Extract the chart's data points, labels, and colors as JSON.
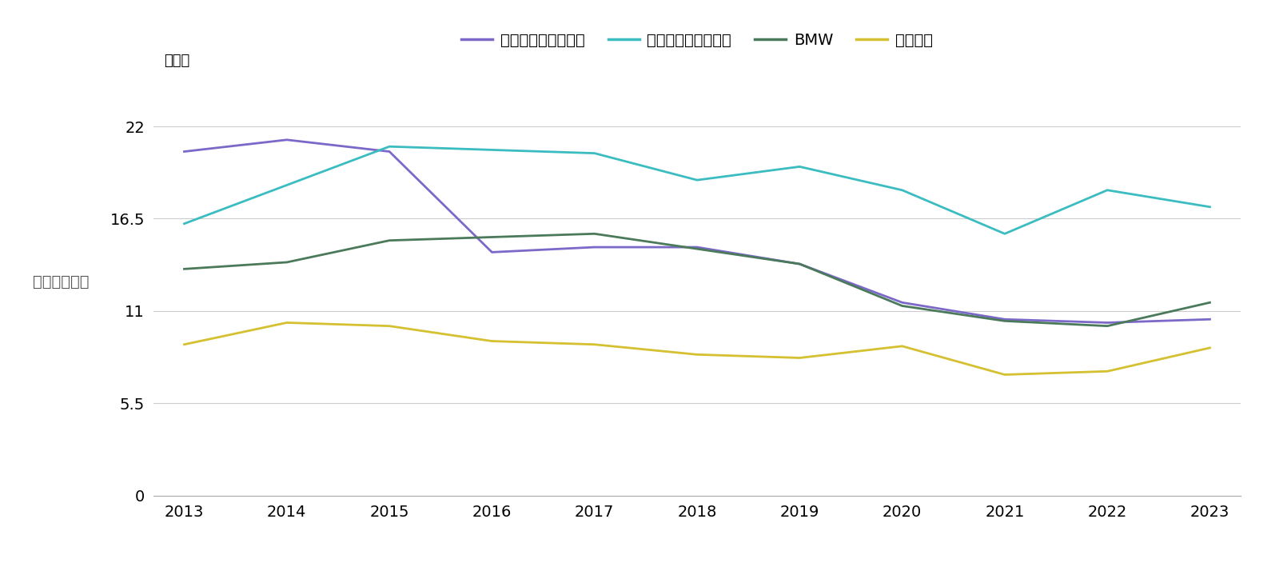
{
  "years": [
    2013,
    2014,
    2015,
    2016,
    2017,
    2018,
    2019,
    2020,
    2021,
    2022,
    2023
  ],
  "volkswagen": [
    20.5,
    21.2,
    20.5,
    14.5,
    14.8,
    14.8,
    13.8,
    11.5,
    10.5,
    10.3,
    10.5
  ],
  "mercedes": [
    16.2,
    18.5,
    20.8,
    20.6,
    20.4,
    18.8,
    19.6,
    18.2,
    15.6,
    18.2,
    17.2
  ],
  "bmw": [
    13.5,
    13.9,
    15.2,
    15.4,
    15.6,
    14.7,
    13.8,
    11.3,
    10.4,
    10.1,
    11.5
  ],
  "audi": [
    9.0,
    10.3,
    10.1,
    9.2,
    9.0,
    8.4,
    8.2,
    8.9,
    7.2,
    7.4,
    8.8
  ],
  "colors": {
    "volkswagen": "#7B68C8",
    "mercedes": "#3BBCC0",
    "bmw": "#4A7A5A",
    "audi": "#D4C030"
  },
  "legend_labels": [
    "フォルクスワーゲン",
    "メルセデス・ベンツ",
    "BMW",
    "アウディ"
  ],
  "ylabel": "輸入車シェア",
  "yunits_label": "（％）",
  "yticks": [
    0,
    5.5,
    11,
    16.5,
    22
  ],
  "ylim": [
    0,
    24.5
  ],
  "xlim": [
    2013,
    2023
  ],
  "background_color": "#ffffff",
  "grid_color": "#cccccc",
  "line_width": 2.0,
  "text_color": "#555555"
}
